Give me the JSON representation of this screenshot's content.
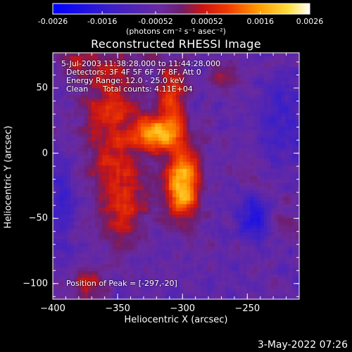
{
  "colorbar": {
    "ticks": [
      "-0.0026",
      "-0.0016",
      "-0.00052",
      "0.00052",
      "0.0016",
      "0.0026"
    ],
    "tick_values": [
      -0.0026,
      -0.0016,
      -0.00052,
      0.00052,
      0.0016,
      0.0026
    ],
    "min": -0.0026,
    "max": 0.0026,
    "unit_label": "(photons cm⁻² s⁻¹ asec⁻²)"
  },
  "chart_data": {
    "type": "heatmap",
    "title": "Reconstructed RHESSI Image",
    "xlabel": "Heliocentric X (arcsec)",
    "ylabel": "Heliocentric Y (arcsec)",
    "xlim": [
      -400,
      -210
    ],
    "ylim": [
      -112,
      77
    ],
    "xticks": [
      -400,
      -350,
      -300,
      -250
    ],
    "xtick_labels": [
      "−400",
      "−350",
      "−300",
      "−250"
    ],
    "yticks": [
      -100,
      -50,
      0,
      50
    ],
    "ytick_labels": [
      "−100",
      "−50",
      "0",
      "50"
    ],
    "colormap": "rhessi-blue-purple-red-yellow-white",
    "peak": [
      -297,
      -20
    ],
    "blobs": [
      {
        "x": -300,
        "y": -22,
        "sx": 9,
        "sy": 20,
        "amp": 0.0026
      },
      {
        "x": -320,
        "y": 16,
        "sx": 12,
        "sy": 9,
        "amp": 0.0021
      },
      {
        "x": -307,
        "y": 42,
        "sx": 8,
        "sy": 22,
        "amp": 0.0014
      },
      {
        "x": -355,
        "y": 30,
        "sx": 16,
        "sy": 42,
        "amp": 0.0012
      },
      {
        "x": -345,
        "y": -40,
        "sx": 15,
        "sy": 25,
        "amp": 0.001
      },
      {
        "x": -373,
        "y": -103,
        "sx": 8,
        "sy": 9,
        "amp": 0.0011
      },
      {
        "x": -270,
        "y": 58,
        "sx": 10,
        "sy": 10,
        "amp": 0.0006
      },
      {
        "x": -215,
        "y": -55,
        "sx": 10,
        "sy": 10,
        "amp": 0.0005
      },
      {
        "x": -245,
        "y": -15,
        "sx": 8,
        "sy": 8,
        "amp": 0.0004
      },
      {
        "x": -385,
        "y": 70,
        "sx": 10,
        "sy": 8,
        "amp": 0.0007
      },
      {
        "x": -245,
        "y": -52,
        "sx": 8,
        "sy": 10,
        "amp": -0.0014
      },
      {
        "x": -222,
        "y": 25,
        "sx": 14,
        "sy": 22,
        "amp": -0.0008
      },
      {
        "x": -395,
        "y": -40,
        "sx": 10,
        "sy": 25,
        "amp": -0.0007
      }
    ],
    "background": -0.00062
  },
  "annotations": {
    "time_range": "5-Jul-2003 11:38:28.000 to 11:44:28.000",
    "detectors": "Detectors: 3F 4F 5F 6F 7F 8F, Att 0",
    "energy": "Energy Range: 12.0 - 25.0 keV",
    "clean": "Clean",
    "total_counts": "Total counts: 4.11E+04",
    "peak_position": "Position of Peak = [-297,-20]"
  },
  "timestamp": "3-May-2022 07:26"
}
